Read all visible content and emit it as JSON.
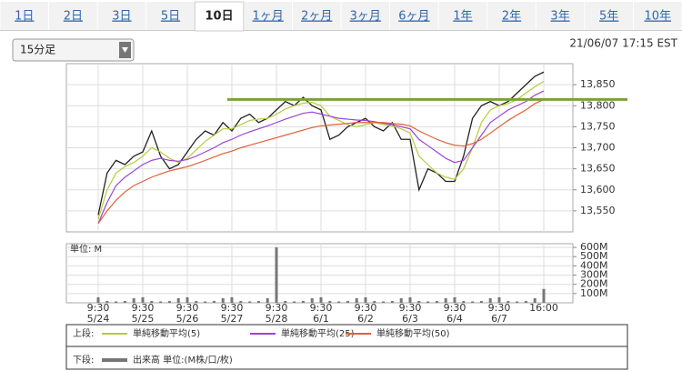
{
  "tabs": [
    "1日",
    "2日",
    "3日",
    "5日",
    "10日",
    "1ヶ月",
    "2ヶ月",
    "3ヶ月",
    "6ヶ月",
    "1年",
    "2年",
    "3年",
    "5年",
    "10年"
  ],
  "selected_tab": 4,
  "interval": "15分足",
  "timestamp": "21/06/07 17:15 EST",
  "chart_data": [
    {
      "type": "line",
      "legend_label": "上段:",
      "series": [
        {
          "color": "#222222",
          "values": [
            13540,
            13640,
            13670,
            13660,
            13680,
            13690,
            13740,
            13680,
            13650,
            13660,
            13690,
            13720,
            13740,
            13730,
            13760,
            13740,
            13770,
            13780,
            13760,
            13770,
            13790,
            13810,
            13800,
            13820,
            13800,
            13790,
            13720,
            13730,
            13750,
            13760,
            13770,
            13750,
            13740,
            13760,
            13720,
            13720,
            13600,
            13650,
            13640,
            13620,
            13620,
            13680,
            13770,
            13800,
            13810,
            13800,
            13810,
            13830,
            13850,
            13870,
            13880
          ]
        },
        {
          "name": "単純移動平均(5)",
          "color": "#b5cc3a",
          "values": [
            13530,
            13600,
            13640,
            13655,
            13665,
            13680,
            13700,
            13690,
            13675,
            13665,
            13675,
            13695,
            13715,
            13730,
            13745,
            13745,
            13755,
            13765,
            13768,
            13770,
            13780,
            13792,
            13800,
            13806,
            13808,
            13800,
            13775,
            13765,
            13755,
            13750,
            13755,
            13760,
            13755,
            13752,
            13745,
            13735,
            13680,
            13660,
            13640,
            13630,
            13625,
            13650,
            13700,
            13760,
            13790,
            13800,
            13805,
            13815,
            13830,
            13845,
            13858
          ]
        },
        {
          "name": "単純移動平均(25)",
          "color": "#9b45d6",
          "values": [
            13520,
            13570,
            13610,
            13630,
            13645,
            13660,
            13670,
            13675,
            13670,
            13668,
            13672,
            13680,
            13690,
            13700,
            13712,
            13720,
            13730,
            13738,
            13745,
            13752,
            13760,
            13768,
            13775,
            13782,
            13785,
            13780,
            13775,
            13770,
            13768,
            13766,
            13765,
            13762,
            13758,
            13755,
            13750,
            13745,
            13720,
            13705,
            13690,
            13675,
            13665,
            13670,
            13700,
            13730,
            13760,
            13775,
            13790,
            13800,
            13810,
            13825,
            13835
          ]
        },
        {
          "name": "単純移動平均(50)",
          "color": "#e0603a",
          "values": [
            13520,
            13550,
            13575,
            13595,
            13610,
            13620,
            13630,
            13638,
            13645,
            13650,
            13655,
            13662,
            13670,
            13678,
            13686,
            13692,
            13700,
            13706,
            13712,
            13718,
            13724,
            13730,
            13736,
            13742,
            13748,
            13752,
            13754,
            13756,
            13758,
            13760,
            13760,
            13760,
            13760,
            13758,
            13756,
            13752,
            13740,
            13730,
            13720,
            13712,
            13706,
            13704,
            13710,
            13720,
            13735,
            13750,
            13765,
            13778,
            13790,
            13805,
            13815
          ]
        }
      ],
      "reference_line": {
        "value": 13815,
        "color": "#7aa23a"
      },
      "ylim": [
        13500,
        13900
      ],
      "yticks": [
        {
          "value": 13550,
          "label": "13,550"
        },
        {
          "value": 13600,
          "label": "13,600"
        },
        {
          "value": 13650,
          "label": "13,650"
        },
        {
          "value": 13700,
          "label": "13,700"
        },
        {
          "value": 13750,
          "label": "13,750"
        },
        {
          "value": 13800,
          "label": "13,800"
        },
        {
          "value": 13850,
          "label": "13,850"
        }
      ],
      "grid": true
    },
    {
      "type": "bar",
      "legend_label": "下段:",
      "ylabel": "単位: M",
      "categories": [
        "9:30\n5/24",
        null,
        null,
        null,
        null,
        "9:30\n5/25",
        null,
        null,
        null,
        null,
        "9:30\n5/26",
        null,
        null,
        null,
        null,
        "9:30\n5/27",
        null,
        null,
        null,
        null,
        "9:30\n5/28",
        null,
        null,
        null,
        null,
        "9:30\n6/1",
        null,
        null,
        null,
        null,
        "9:30\n6/2",
        null,
        null,
        null,
        null,
        "9:30\n6/3",
        null,
        null,
        null,
        null,
        "9:30\n6/4",
        null,
        null,
        null,
        null,
        "9:30\n6/7",
        null,
        null,
        null,
        null,
        "16:00"
      ],
      "series": [
        {
          "name": "出来高 単位:(M株/口/枚)",
          "color": "#777777",
          "values": [
            60,
            20,
            15,
            20,
            50,
            60,
            20,
            15,
            20,
            50,
            60,
            20,
            15,
            20,
            50,
            60,
            20,
            15,
            20,
            50,
            600,
            20,
            15,
            20,
            50,
            60,
            20,
            15,
            20,
            50,
            60,
            20,
            15,
            20,
            50,
            60,
            20,
            15,
            20,
            50,
            60,
            20,
            15,
            20,
            50,
            60,
            20,
            15,
            20,
            50,
            150
          ]
        }
      ],
      "ylim": [
        0,
        640
      ],
      "yticks": [
        {
          "value": 100,
          "label": "100M"
        },
        {
          "value": 200,
          "label": "200M"
        },
        {
          "value": 300,
          "label": "300M"
        },
        {
          "value": 400,
          "label": "400M"
        },
        {
          "value": 500,
          "label": "500M"
        },
        {
          "value": 600,
          "label": "600M"
        }
      ],
      "grid": true
    }
  ]
}
